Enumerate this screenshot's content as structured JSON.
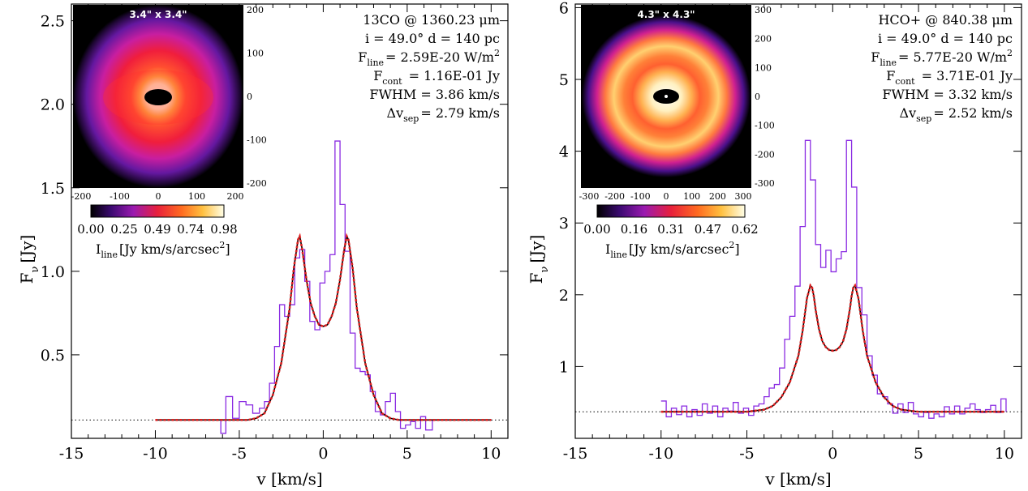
{
  "chart_data": [
    {
      "type": "line",
      "xlabel": "v [km/s]",
      "ylabel_main": "F",
      "ylabel_sub": "ν",
      "ylabel_unit": "[Jy]",
      "xlim": [
        -15,
        11
      ],
      "ylim": [
        0.0,
        2.6
      ],
      "xticks": [
        -15,
        -10,
        -5,
        0,
        5,
        10
      ],
      "yticks": [
        0.5,
        1.0,
        1.5,
        2.0,
        2.5
      ],
      "ytick_labels": [
        "0.5",
        "1.0",
        "1.5",
        "2.0",
        "2.5"
      ],
      "continuum_level": 0.11,
      "annotations": {
        "line1": "13CO @ 1360.23 μm",
        "line2": "i = 49.0°   d = 140 pc",
        "fline_label": "F",
        "fline_sub": "line",
        "fline_value": "= 2.59E-20 W/m",
        "fline_sup": "2",
        "fcont_label": "F",
        "fcont_sub": "cont",
        "fcont_value": "= 1.16E-01 Jy",
        "fwhm": "FWHM = 3.86 km/s",
        "dv_label": "Δv",
        "dv_sub": "sep",
        "dv_value": "= 2.79 km/s"
      },
      "inset": {
        "title": "3.4\" x 3.4\"",
        "axis_ticks": [
          "-200",
          "-100",
          "0",
          "100",
          "200"
        ],
        "right_ticks": [
          "200",
          "100",
          "0",
          "-100",
          "-200"
        ],
        "colorbar_ticks": [
          "0.00",
          "0.25",
          "0.49",
          "0.74",
          "0.98"
        ],
        "colorbar_label": "I",
        "colorbar_label_sub": "line",
        "colorbar_label_unit": "[Jy km/s/arcsec",
        "colorbar_label_sup": "2",
        "colorbar_label_end": "]"
      },
      "series": [
        {
          "name": "observed",
          "style": "step",
          "color": "#8a2be2",
          "x": [
            -10,
            -6.6,
            -6.1,
            -5.8,
            -5.4,
            -5.0,
            -4.6,
            -4.2,
            -3.8,
            -3.5,
            -3.2,
            -2.9,
            -2.6,
            -2.3,
            -2.0,
            -1.7,
            -1.4,
            -1.1,
            -0.8,
            -0.5,
            -0.2,
            0.1,
            0.4,
            0.7,
            1.0,
            1.3,
            1.6,
            1.9,
            2.2,
            2.5,
            2.8,
            3.1,
            3.4,
            3.7,
            4.0,
            4.3,
            4.6,
            4.9,
            5.2,
            5.5,
            5.8,
            6.1,
            6.5,
            10
          ],
          "y": [
            0.11,
            0.11,
            0.03,
            0.25,
            0.12,
            0.22,
            0.2,
            0.15,
            0.18,
            0.22,
            0.33,
            0.55,
            0.8,
            0.73,
            0.8,
            1.08,
            1.13,
            0.94,
            0.7,
            0.65,
            0.93,
            1.0,
            1.1,
            1.78,
            1.4,
            1.12,
            0.63,
            0.42,
            0.4,
            0.38,
            0.28,
            0.16,
            0.14,
            0.22,
            0.27,
            0.16,
            0.06,
            0.08,
            0.1,
            0.06,
            0.13,
            0.05,
            0.11,
            0.11
          ]
        },
        {
          "name": "model",
          "style": "line",
          "color": "#e02020",
          "x": [
            -10.0,
            -5.0,
            -4.5,
            -4.0,
            -3.5,
            -3.0,
            -2.5,
            -2.0,
            -1.75,
            -1.5,
            -1.4,
            -1.25,
            -1.0,
            -0.75,
            -0.5,
            -0.25,
            0.0,
            0.25,
            0.5,
            0.75,
            1.0,
            1.25,
            1.4,
            1.5,
            1.75,
            2.0,
            2.5,
            3.0,
            3.5,
            4.0,
            4.5,
            5.0,
            10.0
          ],
          "y": [
            0.11,
            0.11,
            0.11,
            0.12,
            0.15,
            0.26,
            0.45,
            0.78,
            1.02,
            1.19,
            1.21,
            1.13,
            0.95,
            0.81,
            0.73,
            0.68,
            0.67,
            0.68,
            0.73,
            0.81,
            0.95,
            1.13,
            1.21,
            1.19,
            1.02,
            0.78,
            0.45,
            0.26,
            0.15,
            0.12,
            0.11,
            0.11,
            0.11
          ]
        }
      ]
    },
    {
      "type": "line",
      "xlabel": "v [km/s]",
      "ylabel_main": "F",
      "ylabel_sub": "ν",
      "ylabel_unit": "[Jy]",
      "xlim": [
        -15,
        11
      ],
      "ylim": [
        0.0,
        6.05
      ],
      "xticks": [
        -15,
        -10,
        -5,
        0,
        5,
        10
      ],
      "yticks": [
        1,
        2,
        3,
        4,
        5,
        6
      ],
      "ytick_labels": [
        "1",
        "2",
        "3",
        "4",
        "5",
        "6"
      ],
      "continuum_level": 0.37,
      "annotations": {
        "line1": "HCO+ @ 840.38 μm",
        "line2": "i = 49.0°   d = 140 pc",
        "fline_label": "F",
        "fline_sub": "line",
        "fline_value": "= 5.77E-20 W/m",
        "fline_sup": "2",
        "fcont_label": "F",
        "fcont_sub": "cont",
        "fcont_value": "= 3.71E-01 Jy",
        "fwhm": "FWHM = 3.32 km/s",
        "dv_label": "Δv",
        "dv_sub": "sep",
        "dv_value": "= 2.52 km/s"
      },
      "inset": {
        "title": "4.3\" x 4.3\"",
        "axis_ticks": [
          "-300",
          "-200",
          "-100",
          "0",
          "100",
          "200",
          "300"
        ],
        "right_ticks": [
          "300",
          "200",
          "100",
          "0",
          "-100",
          "-200",
          "-300"
        ],
        "colorbar_ticks": [
          "0.00",
          "0.16",
          "0.31",
          "0.47",
          "0.62"
        ],
        "colorbar_label": "I",
        "colorbar_label_sub": "line",
        "colorbar_label_unit": "[Jy km/s/arcsec",
        "colorbar_label_sup": "2",
        "colorbar_label_end": "]"
      },
      "series": [
        {
          "name": "observed",
          "style": "step",
          "color": "#8a2be2",
          "x": [
            -10.0,
            -9.7,
            -9.4,
            -9.1,
            -8.8,
            -8.5,
            -8.2,
            -7.9,
            -7.6,
            -7.3,
            -7.0,
            -6.7,
            -6.4,
            -6.1,
            -5.8,
            -5.5,
            -5.2,
            -4.9,
            -4.6,
            -4.3,
            -4.0,
            -3.7,
            -3.4,
            -3.1,
            -2.8,
            -2.5,
            -2.2,
            -1.9,
            -1.6,
            -1.3,
            -1.0,
            -0.7,
            -0.4,
            -0.1,
            0.2,
            0.5,
            0.8,
            1.1,
            1.4,
            1.7,
            2.0,
            2.3,
            2.6,
            2.9,
            3.2,
            3.5,
            3.8,
            4.1,
            4.4,
            4.7,
            5.0,
            5.3,
            5.6,
            5.9,
            6.2,
            6.5,
            6.8,
            7.1,
            7.4,
            7.7,
            8.0,
            8.3,
            8.6,
            8.9,
            9.2,
            9.5,
            9.8,
            10.1
          ],
          "y": [
            0.52,
            0.3,
            0.42,
            0.33,
            0.45,
            0.3,
            0.4,
            0.32,
            0.48,
            0.35,
            0.45,
            0.3,
            0.42,
            0.38,
            0.5,
            0.35,
            0.42,
            0.32,
            0.45,
            0.48,
            0.58,
            0.7,
            0.75,
            0.98,
            1.38,
            1.7,
            2.12,
            2.95,
            4.15,
            3.6,
            2.7,
            2.38,
            2.62,
            2.32,
            2.5,
            2.6,
            4.15,
            3.5,
            2.1,
            1.72,
            1.15,
            0.88,
            0.62,
            0.58,
            0.48,
            0.35,
            0.48,
            0.36,
            0.5,
            0.34,
            0.3,
            0.36,
            0.28,
            0.34,
            0.3,
            0.44,
            0.34,
            0.45,
            0.34,
            0.42,
            0.48,
            0.4,
            0.36,
            0.4,
            0.46,
            0.36,
            0.55,
            0.37
          ]
        },
        {
          "name": "model",
          "style": "line",
          "color": "#e02020",
          "x": [
            -10.0,
            -5.0,
            -4.0,
            -3.5,
            -3.0,
            -2.5,
            -2.0,
            -1.75,
            -1.5,
            -1.3,
            -1.2,
            -1.1,
            -1.0,
            -0.8,
            -0.6,
            -0.4,
            -0.2,
            0.0,
            0.2,
            0.4,
            0.6,
            0.8,
            1.0,
            1.1,
            1.2,
            1.3,
            1.5,
            1.75,
            2.0,
            2.5,
            3.0,
            3.5,
            4.0,
            5.0,
            10.0
          ],
          "y": [
            0.37,
            0.37,
            0.4,
            0.45,
            0.57,
            0.78,
            1.15,
            1.5,
            1.95,
            2.13,
            2.1,
            1.98,
            1.8,
            1.52,
            1.35,
            1.27,
            1.23,
            1.22,
            1.23,
            1.27,
            1.35,
            1.52,
            1.8,
            1.98,
            2.1,
            2.13,
            1.95,
            1.5,
            1.15,
            0.78,
            0.57,
            0.45,
            0.4,
            0.37,
            0.37
          ]
        }
      ]
    }
  ]
}
